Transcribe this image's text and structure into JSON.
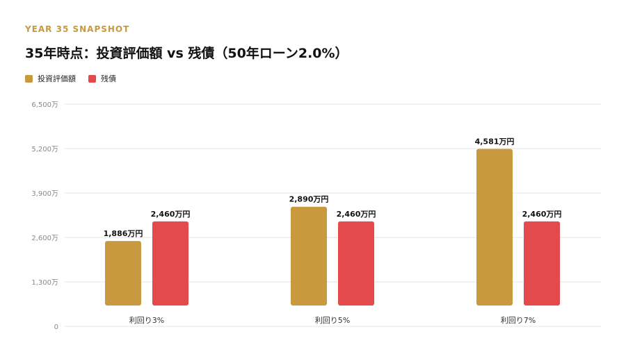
{
  "eyebrow": "YEAR 35 SNAPSHOT",
  "title": "35年時点：投資評価額 vs 残債（50年ローン2.0%）",
  "colors": {
    "investment": "#c8993f",
    "debt": "#e4494c",
    "grid": "#e6e6e6",
    "axis_text": "#888888"
  },
  "legend": [
    {
      "label": "投資評価額",
      "color": "#c8993f"
    },
    {
      "label": "残債",
      "color": "#e4494c"
    }
  ],
  "chart_data": {
    "type": "bar",
    "categories": [
      "利回り3%",
      "利回り5%",
      "利回り7%"
    ],
    "series": [
      {
        "name": "投資評価額",
        "values": [
          1886,
          2890,
          4581
        ],
        "labels": [
          "1,886万円",
          "2,890万円",
          "4,581万円"
        ]
      },
      {
        "name": "残債",
        "values": [
          2460,
          2460,
          2460
        ],
        "labels": [
          "2,460万円",
          "2,460万円",
          "2,460万円"
        ]
      }
    ],
    "yticks": [
      0,
      1300,
      2600,
      3900,
      5200,
      6500
    ],
    "ytick_labels": [
      "0",
      "1,300万",
      "2,600万",
      "3,900万",
      "5,200万",
      "6,500万"
    ],
    "ylim": [
      0,
      6500
    ],
    "grid": true,
    "legend_position": "top-left"
  }
}
